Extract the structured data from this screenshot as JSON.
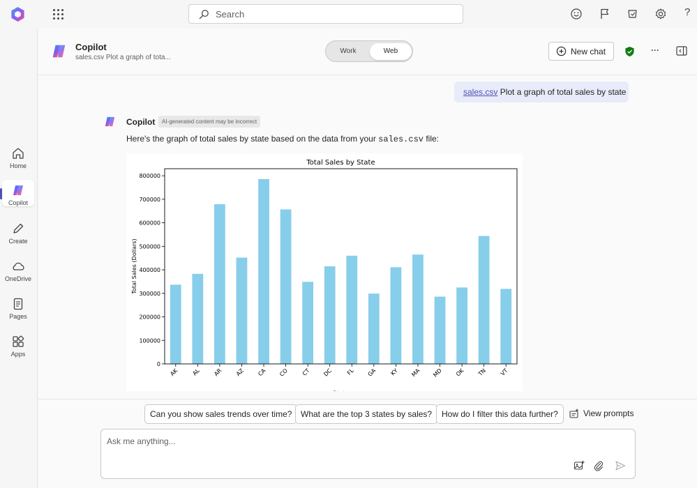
{
  "topbar": {
    "search_placeholder": "Search",
    "icons": [
      "app-launcher-icon",
      "feedback-smiley-icon",
      "flag-icon",
      "tasks-icon",
      "settings-icon",
      "help-icon"
    ],
    "help_glyph": "?"
  },
  "rail": {
    "items": [
      {
        "label": "Home",
        "icon": "home-icon"
      },
      {
        "label": "Copilot",
        "icon": "copilot-icon",
        "active": true
      },
      {
        "label": "Create",
        "icon": "pen-icon"
      },
      {
        "label": "OneDrive",
        "icon": "cloud-icon"
      },
      {
        "label": "Pages",
        "icon": "pages-icon"
      },
      {
        "label": "Apps",
        "icon": "apps-icon"
      }
    ]
  },
  "header": {
    "title": "Copilot",
    "subtitle": "sales.csv Plot a graph of tota...",
    "toggle": {
      "options": [
        "Work",
        "Web"
      ],
      "selected": "Web"
    },
    "new_chat_label": "New chat",
    "more_glyph": "···"
  },
  "conversation": {
    "user_message": {
      "file": "sales.csv",
      "text": "Plot a graph of total sales by state"
    },
    "bot": {
      "name": "Copilot",
      "badge": "AI-generated content may be incorrect",
      "text_before": "Here's the graph of total sales by state based on the data from your ",
      "code": "sales.csv",
      "text_after": " file:"
    }
  },
  "chart_data": {
    "type": "bar",
    "title": "Total Sales by State",
    "xlabel": "State",
    "ylabel": "Total Sales (Dollars)",
    "categories": [
      "AK",
      "AL",
      "AR",
      "AZ",
      "CA",
      "CO",
      "CT",
      "DC",
      "FL",
      "GA",
      "KY",
      "MA",
      "MD",
      "OK",
      "TN",
      "VT"
    ],
    "values": [
      337000,
      383000,
      679000,
      452000,
      786000,
      657000,
      349000,
      415000,
      460000,
      299000,
      411000,
      465000,
      286000,
      325000,
      544000,
      319000
    ],
    "ylim": [
      0,
      830000
    ],
    "yticks": [
      0,
      100000,
      200000,
      300000,
      400000,
      500000,
      600000,
      700000,
      800000
    ],
    "bar_color": "#87ceeb",
    "grid": false,
    "legend": "none"
  },
  "suggestions": [
    "Can you show sales trends over time?",
    "What are the top 3 states by sales?",
    "How do I filter this data further?"
  ],
  "view_prompts_label": "View prompts",
  "input": {
    "placeholder": "Ask me anything...",
    "icons": [
      "add-image-icon",
      "attach-icon",
      "send-icon"
    ]
  },
  "colors": {
    "accent": "#4f52b2",
    "user_bubble": "#e8ebfa",
    "shield": "#107c10"
  }
}
